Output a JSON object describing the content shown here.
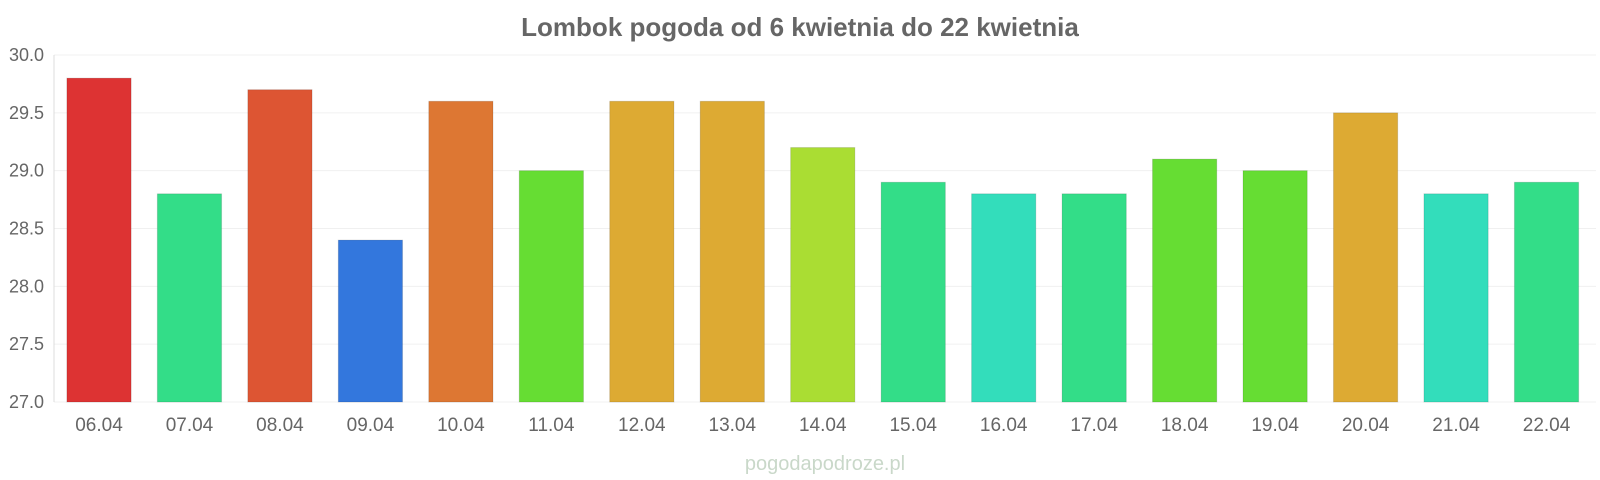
{
  "chart_data": {
    "type": "bar",
    "title": "Lombok pogoda od 6 kwietnia do 22 kwietnia",
    "xlabel": "",
    "ylabel": "",
    "categories": [
      "06.04",
      "07.04",
      "08.04",
      "09.04",
      "10.04",
      "11.04",
      "12.04",
      "13.04",
      "14.04",
      "15.04",
      "16.04",
      "17.04",
      "18.04",
      "19.04",
      "20.04",
      "21.04",
      "22.04"
    ],
    "values": [
      29.8,
      28.8,
      29.7,
      28.4,
      29.6,
      29.0,
      29.6,
      29.6,
      29.2,
      28.9,
      28.8,
      28.8,
      29.1,
      29.0,
      29.5,
      28.8,
      28.9
    ],
    "colors": [
      "#dd3333",
      "#33dd88",
      "#dd5533",
      "#3377dd",
      "#dd7733",
      "#66dd33",
      "#ddaa33",
      "#ddaa33",
      "#aadd33",
      "#33dd88",
      "#33ddbb",
      "#33dd88",
      "#66dd33",
      "#66dd33",
      "#ddaa33",
      "#33ddbb",
      "#33dd88"
    ],
    "ylim": [
      27.0,
      30.0
    ],
    "yticks": [
      "27.0",
      "27.5",
      "28.0",
      "28.5",
      "29.0",
      "29.5",
      "30.0"
    ],
    "grid": true,
    "legend": "none"
  },
  "watermark": "pogodapodroze.pl"
}
